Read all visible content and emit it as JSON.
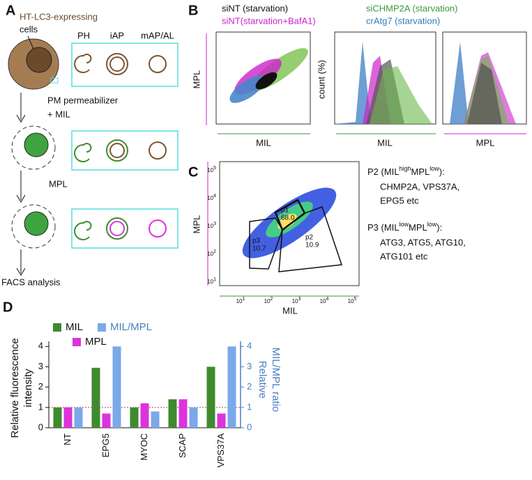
{
  "panels": {
    "A": {
      "label": "A",
      "cell_label": [
        "HT-LC3-expressing",
        "cells"
      ],
      "stages": [
        "PH",
        "iAP",
        "mAP/AL"
      ],
      "step1": [
        "PM permeabilizer",
        "+ MIL"
      ],
      "step2": "MPL",
      "step3": "FACS analysis"
    },
    "B": {
      "label": "B",
      "legend": [
        {
          "name": "siNT (starvation)",
          "color": "#111111"
        },
        {
          "name": "siNT(starvation+BafA1)",
          "color": "#cc22cc"
        },
        {
          "name": "siCHMP2A (starvation)",
          "color": "#3a9a3a"
        },
        {
          "name": "crAtg7 (starvation)",
          "color": "#2f7fb5"
        }
      ],
      "plot1": {
        "ylabel": "MPL",
        "xlabel": "MIL"
      },
      "plot2": {
        "ylabel": "count (%)",
        "xlabel": "MIL"
      },
      "plot3": {
        "xlabel": "MPL"
      }
    },
    "C": {
      "label": "C",
      "ylabel": "MPL",
      "xlabel": "MIL",
      "ticks": [
        {
          "base": "10",
          "exp": "1"
        },
        {
          "base": "10",
          "exp": "2"
        },
        {
          "base": "10",
          "exp": "3"
        },
        {
          "base": "10",
          "exp": "4"
        },
        {
          "base": "10",
          "exp": "5"
        }
      ],
      "gates": [
        {
          "name": "p1",
          "pct": "68.0"
        },
        {
          "name": "p3",
          "pct": "10.7"
        },
        {
          "name": "p2",
          "pct": "10.9"
        }
      ],
      "notes": [
        {
          "head": "P2 (MIL",
          "sup1": "high",
          "mid": "MPL",
          "sup2": "low",
          "tail": "):",
          "lines": [
            "CHMP2A, VPS37A,",
            "EPG5 etc"
          ]
        },
        {
          "head": "P3 (MIL",
          "sup1": "low",
          "mid": "MPL",
          "sup2": "low",
          "tail": "):",
          "lines": [
            "ATG3, ATG5, ATG10,",
            "ATG101 etc"
          ]
        }
      ]
    }
  },
  "chart_data": {
    "type": "bar",
    "title": "D",
    "categories": [
      "NT",
      "EPG5",
      "MYOC",
      "SCAP",
      "VPS37A"
    ],
    "series": [
      {
        "name": "MIL",
        "color": "#3f8a2e",
        "values": [
          1,
          2.95,
          1,
          1.4,
          3.0
        ]
      },
      {
        "name": "MPL",
        "color": "#dd33dd",
        "values": [
          1,
          0.7,
          1.2,
          1.4,
          0.7
        ]
      },
      {
        "name": "MIL/MPL",
        "color": "#7aa9ea",
        "values": [
          1,
          4.0,
          0.8,
          1.0,
          4.0
        ],
        "axis": "y2"
      }
    ],
    "ylabel": [
      "Relative fluorescence",
      "intensity"
    ],
    "y2label": [
      "Relative",
      "MIL/MPL ratio"
    ],
    "y2label_color": "#4a7fc0",
    "ylim": [
      0,
      4.25
    ],
    "yticks": [
      0,
      1,
      2,
      3,
      4
    ],
    "y2lim": [
      0,
      4.25
    ],
    "y2ticks": [
      0,
      1,
      2,
      3,
      4
    ],
    "hline": 1,
    "hline_color": "#cc3333"
  }
}
